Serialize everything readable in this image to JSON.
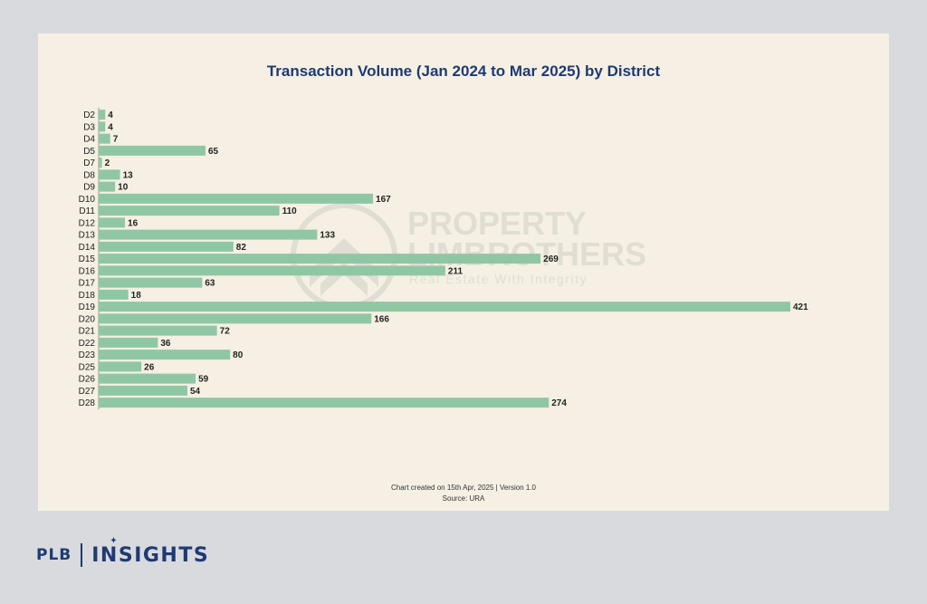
{
  "chart_data": {
    "type": "bar",
    "orientation": "horizontal",
    "title": "Transaction Volume (Jan 2024 to Mar 2025) by District",
    "categories": [
      "D2",
      "D3",
      "D4",
      "D5",
      "D7",
      "D8",
      "D9",
      "D10",
      "D11",
      "D12",
      "D13",
      "D14",
      "D15",
      "D16",
      "D17",
      "D18",
      "D19",
      "D20",
      "D21",
      "D22",
      "D23",
      "D25",
      "D26",
      "D27",
      "D28"
    ],
    "values": [
      4,
      4,
      7,
      65,
      2,
      13,
      10,
      167,
      110,
      16,
      133,
      82,
      269,
      211,
      63,
      18,
      421,
      166,
      72,
      36,
      80,
      26,
      59,
      54,
      274
    ],
    "xlim": [
      0,
      421
    ],
    "xlabel": "",
    "ylabel": "",
    "grid": false,
    "bar_color": "#8fc7a4"
  },
  "footer": {
    "created": "Chart created on 15th Apr, 2025 | Version 1.0",
    "source": "Source: URA"
  },
  "watermark": {
    "line1": "PROPERTY",
    "line2": "LIMBROTHERS",
    "tagline": "Real Estate With Integrity"
  },
  "brand": {
    "plb": "PLB",
    "insights": "INSIGHTS"
  }
}
